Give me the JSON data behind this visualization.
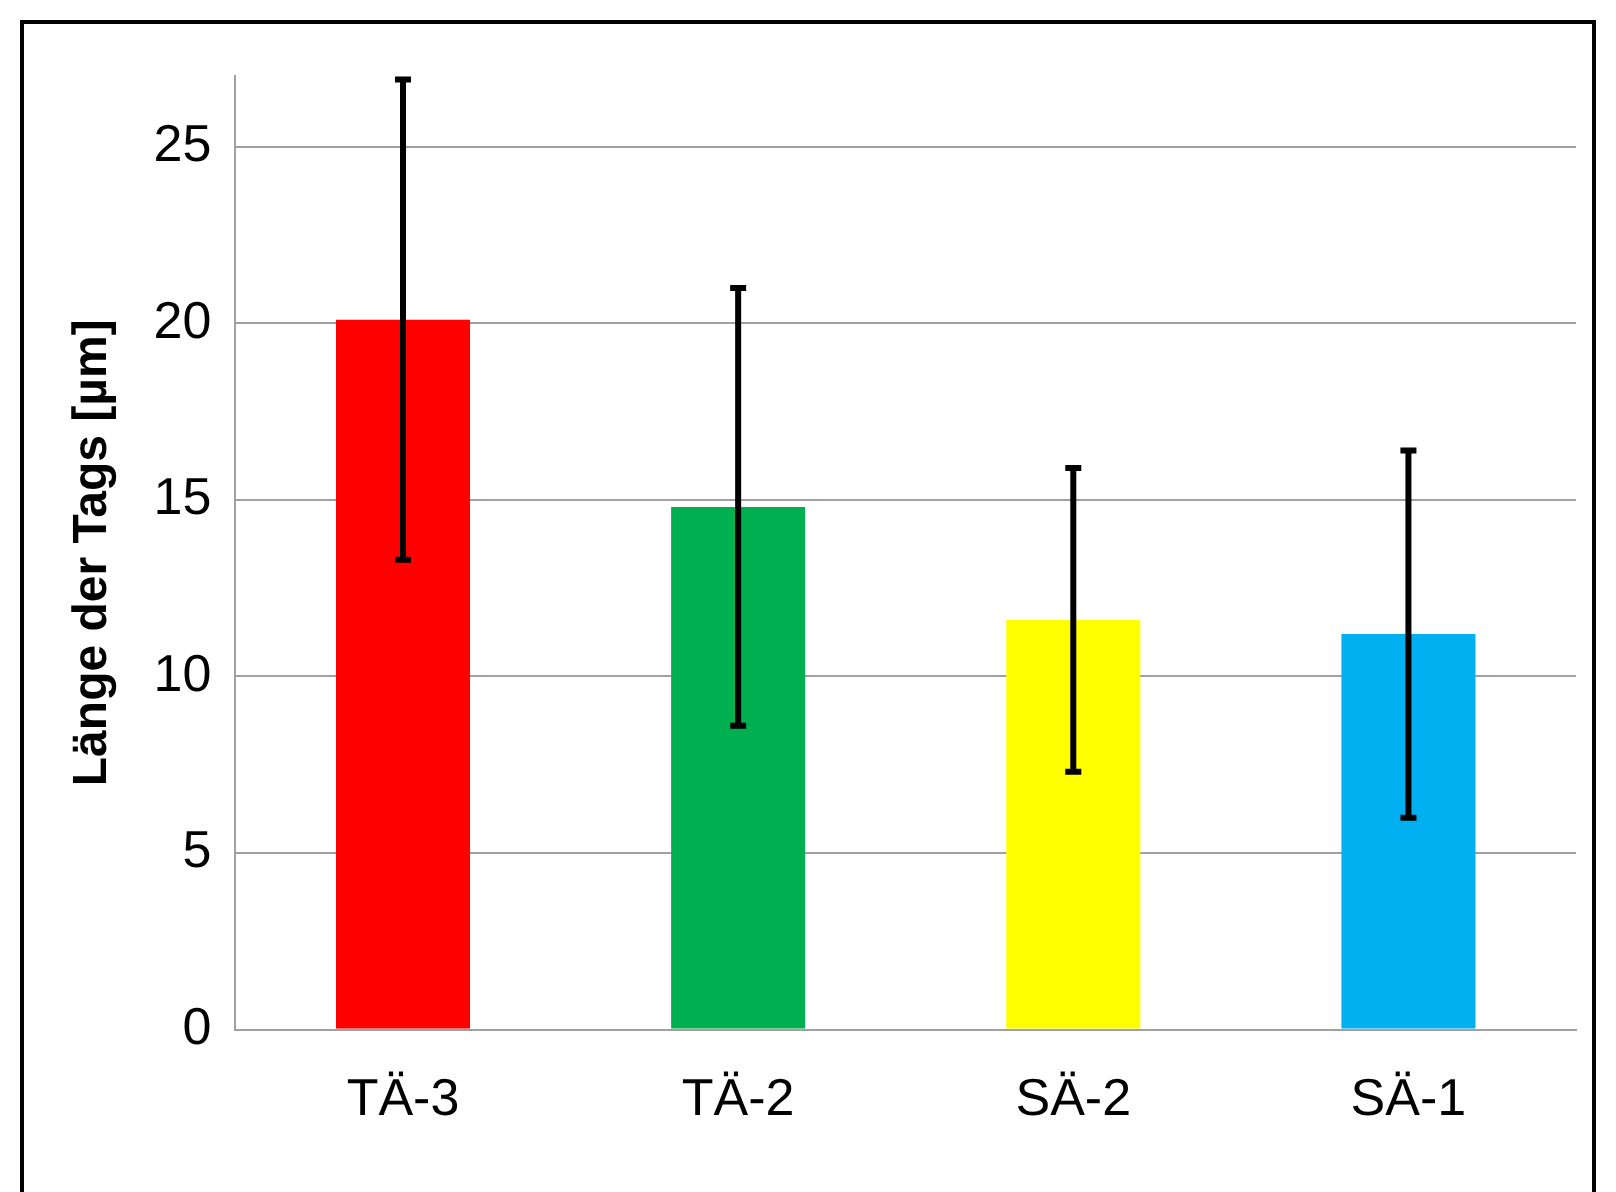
{
  "chart_data": {
    "type": "bar",
    "ylabel": "Länge der Tags [µm]",
    "categories": [
      "TÄ-3",
      "TÄ-2",
      "SÄ-2",
      "SÄ-1"
    ],
    "values": [
      20.1,
      14.8,
      11.6,
      11.2
    ],
    "errors": [
      6.8,
      6.2,
      4.3,
      5.2
    ],
    "colors": [
      "#ff0000",
      "#00b050",
      "#ffff00",
      "#00b0f0"
    ],
    "ylim": [
      0,
      27
    ],
    "yticks": [
      0,
      5,
      10,
      15,
      20,
      25
    ],
    "grid": "y",
    "legend": false
  }
}
